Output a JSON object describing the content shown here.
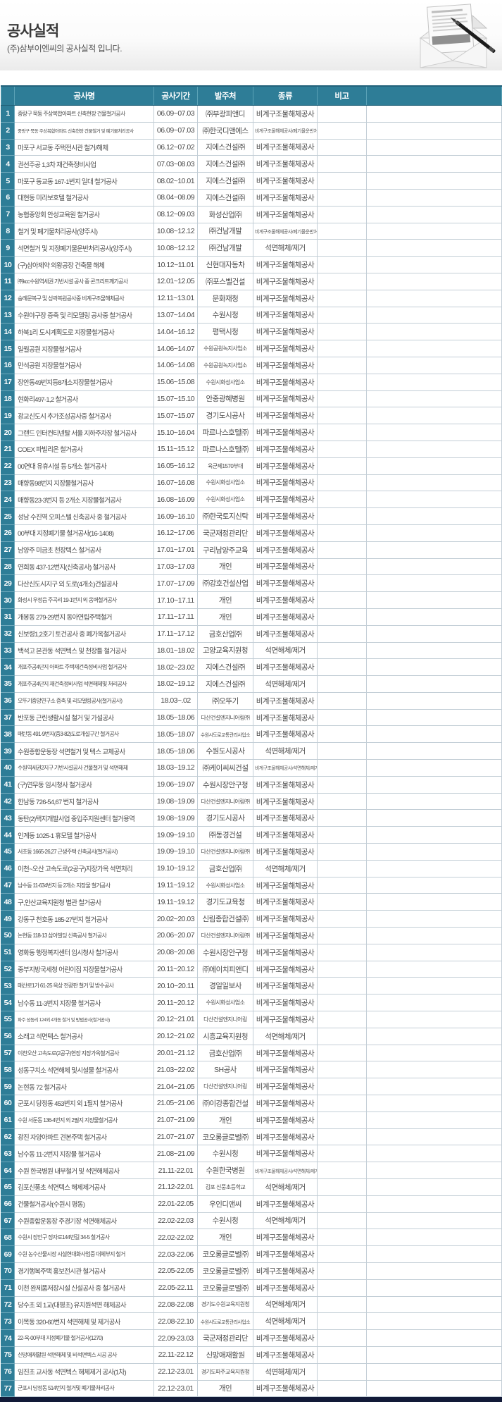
{
  "page": {
    "title": "공사실적",
    "subtitle": "(주)삼부이엔씨의 공사실적 입니다."
  },
  "icons": {
    "envelope": "open-envelope-with-letter-and-pen"
  },
  "colors": {
    "header_teal": "#2e7d97",
    "row_border": "#c3ced6",
    "footer_bar": "#121a38",
    "body_text": "#4a4a4a"
  },
  "table": {
    "columns": [
      "",
      "공사명",
      "공사기간",
      "발주처",
      "종류",
      "비고"
    ],
    "rows": [
      {
        "no": "1",
        "name": "중랑구 묵동 주상복합아파트 신축현장 건물철거공사",
        "period": "06.09~07.03",
        "client": "㈜부광피앤디",
        "type": "비계구조물해체공사",
        "note": ""
      },
      {
        "no": "2",
        "name": "중랑구 묵동 주상복합아파트 신축현장 건물철거 및 폐기물처리공사",
        "period": "06.09~07.03",
        "client": "㈜한국디앤에스",
        "type": "비계구조물해체공사/폐기물운반처리",
        "note": ""
      },
      {
        "no": "3",
        "name": "마포구 서교동 주택전시관  철거/해체",
        "period": "06.12~07.02",
        "client": "지에스건설㈜",
        "type": "비계구조물해체공사",
        "note": ""
      },
      {
        "no": "4",
        "name": "권선주공 1,3차 재건축정비사업",
        "period": "07.03~08.03",
        "client": "지에스건설㈜",
        "type": "비계구조물해체공사",
        "note": ""
      },
      {
        "no": "5",
        "name": "마포구 동교동 167-1번지 일대 철거공사",
        "period": "08.02~10.01",
        "client": "지에스건설㈜",
        "type": "비계구조물해체공사",
        "note": ""
      },
      {
        "no": "6",
        "name": "대현동 미라보호텔 철거공사",
        "period": "08.04~08.09",
        "client": "지에스건설㈜",
        "type": "비계구조물해체공사",
        "note": ""
      },
      {
        "no": "7",
        "name": "농협중앙회 안성교육원 철거공사",
        "period": "08.12~09.03",
        "client": "화성산업㈜",
        "type": "비계구조물해체공사",
        "note": ""
      },
      {
        "no": "8",
        "name": "철거 및 폐기물처리공사(양주시)",
        "period": "10.08~12.12",
        "client": "㈜건남개발",
        "type": "비계구조물해체공사/폐기물운반처리",
        "note": ""
      },
      {
        "no": "9",
        "name": "석면철거 및 지정폐기물운반처리공사(양주시)",
        "period": "10.08~12.12",
        "client": "㈜건남개발",
        "type": "석면해체/제거",
        "note": ""
      },
      {
        "no": "10",
        "name": "(구)삼아제약 의왕공장 건축물 해체",
        "period": "10.12~11.01",
        "client": "신현대자동차",
        "type": "비계구조물해체공사",
        "note": ""
      },
      {
        "no": "11",
        "name": "㈜kcc수원역세권 기반시설 공사 중 콘크리트깨기공사",
        "period": "12.01~12.05",
        "client": "㈜포스벨건설",
        "type": "비계구조물해체공사",
        "note": ""
      },
      {
        "no": "12",
        "name": "숭례문복구 및 성곽복원공사중 비계구조물해체공사",
        "period": "12.11~13.01",
        "client": "문화재청",
        "type": "비계구조물해체공사",
        "note": ""
      },
      {
        "no": "13",
        "name": "수원야구장 증축 및 리모델링 공사중 철거공사",
        "period": "13.07~14.04",
        "client": "수원시청",
        "type": "비계구조물해체공사",
        "note": ""
      },
      {
        "no": "14",
        "name": "하북1리 도시계획도로 지장물철거공사",
        "period": "14.04~16.12",
        "client": "평택시청",
        "type": "비계구조물해체공사",
        "note": ""
      },
      {
        "no": "15",
        "name": "일월공원 지장물철거공사",
        "period": "14.06~14.07",
        "client": "수원공원녹지사업소",
        "type": "비계구조물해체공사",
        "note": ""
      },
      {
        "no": "16",
        "name": "만석공원 지장물철거공사",
        "period": "14.06~14.08",
        "client": "수원공원녹지사업소",
        "type": "비계구조물해체공사",
        "note": ""
      },
      {
        "no": "17",
        "name": "장안동49번지등8개소지장물철거공사",
        "period": "15.06~15.08",
        "client": "수원시화성사업소",
        "type": "비계구조물해체공사",
        "note": ""
      },
      {
        "no": "18",
        "name": "현화리497-1,2 철거공사",
        "period": "15.07~15.10",
        "client": "안중광혜병원",
        "type": "비계구조물해체공사",
        "note": ""
      },
      {
        "no": "19",
        "name": "광교신도시 추가조성공사중 철거공사",
        "period": "15.07~15.07",
        "client": "경기도시공사",
        "type": "비계구조물해체공사",
        "note": ""
      },
      {
        "no": "20",
        "name": "그랜드 인터컨티넨탈 서울 지하주차장 철거공사",
        "period": "15.10~16.04",
        "client": "파르나스호텔㈜",
        "type": "비계구조물해체공사",
        "note": ""
      },
      {
        "no": "21",
        "name": "COEX 파빌리온 철거공사",
        "period": "15.11~15.12",
        "client": "파르나스호텔㈜",
        "type": "비계구조물해체공사",
        "note": ""
      },
      {
        "no": "22",
        "name": "00연대 유휴시설 등 5개소 철거공사",
        "period": "16.05~16.12",
        "client": "육군제1570부대",
        "type": "비계구조물해체공사",
        "note": ""
      },
      {
        "no": "23",
        "name": "매향동98번지 지장물철거공사",
        "period": "16.07~16.08",
        "client": "수원시화성사업소",
        "type": "비계구조물해체공사",
        "note": ""
      },
      {
        "no": "24",
        "name": "매향동23-3번지 등 2개소 지장물철거공사",
        "period": "16.08~16.09",
        "client": "수원시화성사업소",
        "type": "비계구조물해체공사",
        "note": ""
      },
      {
        "no": "25",
        "name": "성남 수진역 오피스텔 신축공사 중 철거공사",
        "period": "16.09~16.10",
        "client": "㈜한국토지신탁",
        "type": "비계구조물해체공사",
        "note": ""
      },
      {
        "no": "26",
        "name": "00부대 지정폐기물 철거공사(16-1408)",
        "period": "16.12~17.06",
        "client": "국군재정관리단",
        "type": "비계구조물해체공사",
        "note": ""
      },
      {
        "no": "27",
        "name": "남양주 미금초 천장텍스 철거공사",
        "period": "17.01~17.01",
        "client": "구리남양주교육",
        "type": "비계구조물해체공사",
        "note": ""
      },
      {
        "no": "28",
        "name": "연희동 437-12번지(신축공사) 철거공사",
        "period": "17.03~17.03",
        "client": "개인",
        "type": "비계구조물해체공사",
        "note": ""
      },
      {
        "no": "29",
        "name": "다산신도시지구 외 도로(4개소)건설공사",
        "period": "17.07~17.09",
        "client": "㈜강호건설산업",
        "type": "비계구조물해체공사",
        "note": ""
      },
      {
        "no": "30",
        "name": "화성시 우정읍 주곡리 19-1번지 외 옹벽철거공사",
        "period": "17.10~17.11",
        "client": "개인",
        "type": "비계구조물해체공사",
        "note": ""
      },
      {
        "no": "31",
        "name": "개봉동 279-29번지 동아연립주택철거",
        "period": "17.11~17.11",
        "client": "개인",
        "type": "비계구조물해체공사",
        "note": ""
      },
      {
        "no": "32",
        "name": "신보령1,2호기 토건공사 중 폐가옥철거공사",
        "period": "17.11~17.12",
        "client": "금호산업㈜",
        "type": "비계구조물해체공사",
        "note": ""
      },
      {
        "no": "33",
        "name": "백석고 본관동 석면텍스 및  천장틀 철거공사",
        "period": "18.01~18.02",
        "client": "고양교육지원청",
        "type": "석면해체/제거",
        "note": ""
      },
      {
        "no": "34",
        "name": "개포주공4단지 아파트 주택재건축정비사업 철거공사",
        "period": "18.02~23.02",
        "client": "지에스건설㈜",
        "type": "비계구조물해체공사",
        "note": ""
      },
      {
        "no": "35",
        "name": "개포주공4단지 재건축정비사업 석면해체및 처리공사",
        "period": "18.02~19.12",
        "client": "지에스건설㈜",
        "type": "석면해체/제거",
        "note": ""
      },
      {
        "no": "36",
        "name": "오뚜기중앙연구소 증축 및 리모델링공사(철거공사)",
        "period": "18.03~.02",
        "client": "㈜오뚜기",
        "type": "비계구조물해체공사",
        "note": ""
      },
      {
        "no": "37",
        "name": "반포동 근린생활시설 철거 및 가설공사",
        "period": "18.05~18.06",
        "client": "다산건설엔지니어링㈜",
        "type": "비계구조물해체공사",
        "note": ""
      },
      {
        "no": "38",
        "name": "매탄동 491-9번지(중3-82)도로개설구간 철거공사",
        "period": "18.05~18.07",
        "client": "수원시도로교통관리사업소",
        "type": "비계구조물해체공사",
        "note": ""
      },
      {
        "no": "39",
        "name": "수원종합운동장 석면철거 및 텍스 교체공사",
        "period": "18.05~18.06",
        "client": "수원도시공사",
        "type": "석면해체/제거",
        "note": ""
      },
      {
        "no": "40",
        "name": "수원역세권2지구 기반시설공사 건물철거 및 석면해체",
        "period": "18.03~19.12",
        "client": "㈜케이씨씨건설",
        "type": "비계구조물해체공사/석면해체/제거",
        "note": ""
      },
      {
        "no": "41",
        "name": "(구)연무동 임시청사 철거공사",
        "period": "19.06~19.07",
        "client": "수원시장안구청",
        "type": "비계구조물해체공사",
        "note": ""
      },
      {
        "no": "42",
        "name": "한남동 726-54,67 번지 철거공사",
        "period": "19.08~19.09",
        "client": "다산건설엔지니어링㈜",
        "type": "비계구조물해체공사",
        "note": ""
      },
      {
        "no": "43",
        "name": "동탄(2)택지개발사업 중입주지원센터 철거용역",
        "period": "19.08~19.09",
        "client": "경기도시공사",
        "type": "비계구조물해체공사",
        "note": ""
      },
      {
        "no": "44",
        "name": "인계동 1025-1 휴모텔 철거공사",
        "period": "19.09~19.10",
        "client": "㈜동경건설",
        "type": "비계구조물해체공사",
        "note": ""
      },
      {
        "no": "45",
        "name": "서초동 1665-26,27 근생주택 신축공사(철거공사)",
        "period": "19.09~19.10",
        "client": "다산건설엔지니어링㈜",
        "type": "비계구조물해체공사",
        "note": ""
      },
      {
        "no": "46",
        "name": "이천~오산 고속도로(2공구)지장가옥 석면처리",
        "period": "19.10~19.12",
        "client": "금호산업㈜",
        "type": "석면해체/제거",
        "note": ""
      },
      {
        "no": "47",
        "name": "남수동 11-634번지 등 2개소 지장물 철거공사",
        "period": "19.11~19.12",
        "client": "수원시화성사업소",
        "type": "비계구조물해체공사",
        "note": ""
      },
      {
        "no": "48",
        "name": "구,안산교육지원청 별관 철거공사",
        "period": "19.11~19.12",
        "client": "경기도교육청",
        "type": "비계구조물해체공사",
        "note": ""
      },
      {
        "no": "49",
        "name": "강동구 천호동 185-27번지 철거공사",
        "period": "20.02~20.03",
        "client": "신림종합건설㈜",
        "type": "비계구조물해체공사",
        "note": ""
      },
      {
        "no": "50",
        "name": "논현동 118-13 삼아빌딩 신축공사 철거공사",
        "period": "20.06~20.07",
        "client": "다산건설엔지니어링㈜",
        "type": "비계구조물해체공사",
        "note": ""
      },
      {
        "no": "51",
        "name": "영화동 행정복지센터 임시청사 철거공사",
        "period": "20.08~20.08",
        "client": "수원시장안구청",
        "type": "비계구조물해체공사",
        "note": ""
      },
      {
        "no": "52",
        "name": "중부지방국세청 어린이집 지장물철거공사",
        "period": "20.11~20.12",
        "client": "㈜에이치피앤디",
        "type": "비계구조물해체공사",
        "note": ""
      },
      {
        "no": "53",
        "name": "매산로1가 61-25 옥상 전광판 철거 및 방수공사",
        "period": "20.10~20.11",
        "client": "경일일보사",
        "type": "비계구조물해체공사",
        "note": ""
      },
      {
        "no": "54",
        "name": "남수동 11-3번지 지장물 철거공사",
        "period": "20.11~20.12",
        "client": "수원시화성사업소",
        "type": "비계구조물해체공사",
        "note": ""
      },
      {
        "no": "55",
        "name": "파주 성동리 124외 4개동 철거 및 방범공사(철거공사)",
        "period": "20.12~21.01",
        "client": "다산건설엔지니어링",
        "type": "비계구조물해체공사",
        "note": ""
      },
      {
        "no": "56",
        "name": "소래고 석면텍스 철거공사",
        "period": "20.12~21.02",
        "client": "시흥교육지원청",
        "type": "석면해체/제거",
        "note": ""
      },
      {
        "no": "57",
        "name": "이천오산 고속도로(2공구)현장 지장가옥철거공사",
        "period": "20.01~21.12",
        "client": "금호산업㈜",
        "type": "비계구조물해체공사",
        "note": ""
      },
      {
        "no": "58",
        "name": "성동구치소 석면해체 및시설물 철거공사",
        "period": "21.03~22.02",
        "client": "SH공사",
        "type": "비계구조물해체공사",
        "note": ""
      },
      {
        "no": "59",
        "name": "논현동 72 철거공사",
        "period": "21.04~21.05",
        "client": "다산건설엔지니어링",
        "type": "비계구조물해체공사",
        "note": ""
      },
      {
        "no": "60",
        "name": "군포시 당정동 453번지 외 1필지 철거공사",
        "period": "21.05~21.06",
        "client": "㈜이강종합건설",
        "type": "비계구조물해체공사",
        "note": ""
      },
      {
        "no": "61",
        "name": "수원 서둔동 136-4번지 외 2필지 지장물철거공사",
        "period": "21.07~21.09",
        "client": "개인",
        "type": "비계구조물해체공사",
        "note": ""
      },
      {
        "no": "62",
        "name": "광진 자양아파트 견본주택 철거공사",
        "period": "21.07~21.07",
        "client": "코오롱글로벌㈜",
        "type": "비계구조물해체공사",
        "note": ""
      },
      {
        "no": "63",
        "name": "남수동 11-2번지 지장물 철거공사",
        "period": "21.08~21.09",
        "client": "수원시청",
        "type": "비계구조물해체공사",
        "note": ""
      },
      {
        "no": "64",
        "name": "수원 한국병원 내부철거 및 석면해체공사",
        "period": "21.11-22.01",
        "client": "수원한국병원",
        "type": "비계구조물해체공사/석면해체/제거",
        "note": ""
      },
      {
        "no": "65",
        "name": "김포신풍초 석면텍스 해제제거공사",
        "period": "21.12-22.01",
        "client": "김포 신풍초등학교",
        "type": "석면해체/제거",
        "note": ""
      },
      {
        "no": "66",
        "name": "건물철거공사(수원시 평동)",
        "period": "22.01-22.05",
        "client": "우인디앤씨",
        "type": "비계구조물해체공사",
        "note": ""
      },
      {
        "no": "67",
        "name": "수원종합운동장 주경기장 석면해체공사",
        "period": "22.02-22.03",
        "client": "수원시청",
        "type": "석면해체/제거",
        "note": ""
      },
      {
        "no": "68",
        "name": "수원시 장안구 정자로144번길 34-5 철거공사",
        "period": "22.02-22.02",
        "client": "개인",
        "type": "비계구조물해체공사",
        "note": ""
      },
      {
        "no": "69",
        "name": "수원 농수산물시장  시설현대화사업중 대체부지 철거",
        "period": "22.03-22.06",
        "client": "코오롱글로벌㈜",
        "type": "비계구조물해체공사",
        "note": ""
      },
      {
        "no": "70",
        "name": "경기행복주택  홍보전시관 철거공사",
        "period": "22.05-22.05",
        "client": "코오롱글로벌㈜",
        "type": "비계구조물해체공사",
        "note": ""
      },
      {
        "no": "71",
        "name": "이천 완제품저장시설 신설공사 중 철거공사",
        "period": "22.05-22.11",
        "client": "코오롱글로벌㈜",
        "type": "비계구조물해체공사",
        "note": ""
      },
      {
        "no": "72",
        "name": "당수초 외 1교(대평초) 유치원석면 해체공사",
        "period": "22.08-22.08",
        "client": "경기도수원교육지원청",
        "type": "석면해체/제거",
        "note": ""
      },
      {
        "no": "73",
        "name": "이목동 320-60번지 석면해체 및 제거공사",
        "period": "22.08-22.10",
        "client": "수원시도로교통관리사업소",
        "type": "석면해체/제거",
        "note": ""
      },
      {
        "no": "74",
        "name": "22-육-00부대 지정폐기물 철거공사(1270)",
        "period": "22.09-23.03",
        "client": "국군재정관리단",
        "type": "비계구조물해체공사",
        "note": ""
      },
      {
        "no": "75",
        "name": "신망애재활원 석면해체 및 비석면텍스 시공 공사",
        "period": "22.11-22.12",
        "client": "신망애재활원",
        "type": "비계구조물해체공사",
        "note": ""
      },
      {
        "no": "76",
        "name": "임진초 교사동 석면텍스 해체제거 공사(1차)",
        "period": "22.12-23.01",
        "client": "경기도파주교육지원청",
        "type": "석면해체/제거",
        "note": ""
      },
      {
        "no": "77",
        "name": "군포시 당정동 514번지 철거및 폐기물처리공사",
        "period": "22.12-23.01",
        "client": "개인",
        "type": "비계구조물해체공사",
        "note": ""
      }
    ]
  }
}
